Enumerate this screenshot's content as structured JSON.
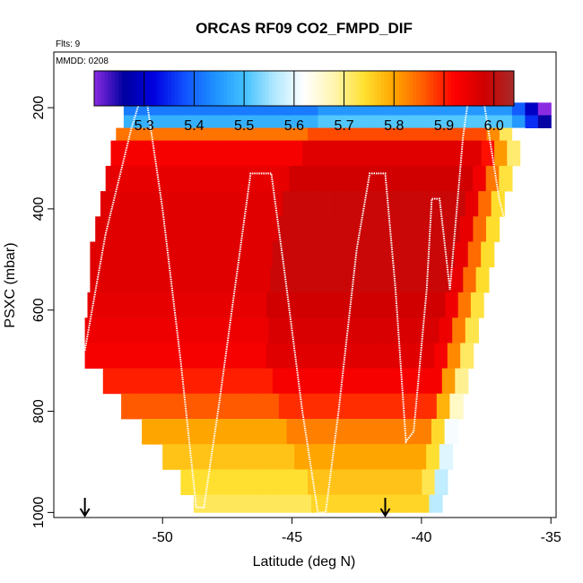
{
  "chart_data": {
    "type": "heatmap",
    "title": "ORCAS RF09 CO2_FMPD_DIF",
    "flights_label": "Flts: 9",
    "date_label": "MMDD: 0208",
    "xlabel": "Latitude (deg N)",
    "ylabel": "PSXC (mbar)",
    "xlim": [
      -54.2,
      -34.8
    ],
    "ylim": [
      1010,
      90
    ],
    "y_reversed": true,
    "x_ticks": [
      -50,
      -45,
      -40,
      -35
    ],
    "x_tick_labels": [
      "-50",
      "-45",
      "-40",
      "-35"
    ],
    "y_ticks": [
      200,
      400,
      600,
      800,
      1000
    ],
    "y_tick_labels": [
      "200",
      "400",
      "600",
      "800",
      "1000"
    ],
    "colorbar": {
      "range": [
        5.2,
        6.04
      ],
      "ticks": [
        5.3,
        5.4,
        5.5,
        5.6,
        5.7,
        5.8,
        5.9,
        6.0
      ],
      "tick_labels": [
        "5.3",
        "5.4",
        "5.5",
        "5.6",
        "5.7",
        "5.8",
        "5.9",
        "6.0"
      ],
      "colors": [
        "#8a2be2",
        "#0000a0",
        "#0000e0",
        "#1050ff",
        "#1e90ff",
        "#40c0ff",
        "#b0e8ff",
        "#ffffff",
        "#fff6b0",
        "#ffe030",
        "#ffa500",
        "#ff5a00",
        "#ff0000",
        "#d00000",
        "#a52a2a"
      ]
    },
    "pressure_bands": [
      {
        "p_top": 190,
        "p_bot": 215,
        "lat_min": -51.5,
        "lat_max": -35.0,
        "value": 5.42
      },
      {
        "p_top": 215,
        "p_bot": 240,
        "lat_min": -51.5,
        "lat_max": -35.0,
        "value": 5.48
      },
      {
        "p_top": 240,
        "p_bot": 265,
        "lat_min": -51.8,
        "lat_max": -36.0,
        "value": 5.84
      },
      {
        "p_top": 265,
        "p_bot": 315,
        "lat_min": -52.0,
        "lat_max": -36.2,
        "value": 5.93
      },
      {
        "p_top": 315,
        "p_bot": 365,
        "lat_min": -52.2,
        "lat_max": -36.5,
        "value": 5.95
      },
      {
        "p_top": 365,
        "p_bot": 415,
        "lat_min": -52.4,
        "lat_max": -36.8,
        "value": 5.96
      },
      {
        "p_top": 415,
        "p_bot": 465,
        "lat_min": -52.6,
        "lat_max": -37.0,
        "value": 5.96
      },
      {
        "p_top": 465,
        "p_bot": 515,
        "lat_min": -52.8,
        "lat_max": -37.2,
        "value": 5.96
      },
      {
        "p_top": 515,
        "p_bot": 565,
        "lat_min": -52.8,
        "lat_max": -37.4,
        "value": 5.96
      },
      {
        "p_top": 565,
        "p_bot": 615,
        "lat_min": -52.9,
        "lat_max": -37.6,
        "value": 5.95
      },
      {
        "p_top": 615,
        "p_bot": 665,
        "lat_min": -53.0,
        "lat_max": -37.8,
        "value": 5.94
      },
      {
        "p_top": 665,
        "p_bot": 715,
        "lat_min": -53.0,
        "lat_max": -38.0,
        "value": 5.93
      },
      {
        "p_top": 715,
        "p_bot": 765,
        "lat_min": -52.3,
        "lat_max": -38.2,
        "value": 5.9
      },
      {
        "p_top": 765,
        "p_bot": 815,
        "lat_min": -51.6,
        "lat_max": -38.4,
        "value": 5.86
      },
      {
        "p_top": 815,
        "p_bot": 865,
        "lat_min": -50.8,
        "lat_max": -38.6,
        "value": 5.8
      },
      {
        "p_top": 865,
        "p_bot": 915,
        "lat_min": -50.0,
        "lat_max": -38.8,
        "value": 5.77
      },
      {
        "p_top": 915,
        "p_bot": 965,
        "lat_min": -49.3,
        "lat_max": -39.0,
        "value": 5.74
      },
      {
        "p_top": 965,
        "p_bot": 1000,
        "lat_min": -48.8,
        "lat_max": -39.2,
        "value": 5.72
      }
    ],
    "flight_track": [
      [
        -53.0,
        680
      ],
      [
        -52.2,
        450
      ],
      [
        -51.2,
        240
      ],
      [
        -50.9,
        190
      ],
      [
        -50.6,
        190
      ],
      [
        -50.0,
        400
      ],
      [
        -49.3,
        700
      ],
      [
        -48.7,
        990
      ],
      [
        -48.4,
        990
      ],
      [
        -47.8,
        780
      ],
      [
        -47.0,
        480
      ],
      [
        -46.6,
        330
      ],
      [
        -46.2,
        330
      ],
      [
        -45.8,
        330
      ],
      [
        -45.3,
        520
      ],
      [
        -44.6,
        800
      ],
      [
        -44.0,
        1000
      ],
      [
        -43.7,
        1000
      ],
      [
        -43.2,
        800
      ],
      [
        -42.5,
        480
      ],
      [
        -42.0,
        330
      ],
      [
        -41.7,
        330
      ],
      [
        -41.4,
        330
      ],
      [
        -41.0,
        560
      ],
      [
        -40.6,
        860
      ],
      [
        -40.3,
        840
      ],
      [
        -39.8,
        560
      ],
      [
        -39.6,
        380
      ],
      [
        -39.3,
        380
      ],
      [
        -38.9,
        560
      ],
      [
        -38.4,
        260
      ],
      [
        -38.2,
        185
      ],
      [
        -37.6,
        185
      ],
      [
        -37.0,
        380
      ],
      [
        -36.8,
        420
      ]
    ],
    "track_color": "#ffffff",
    "arrows_lat": [
      -53.0,
      -41.4
    ]
  }
}
